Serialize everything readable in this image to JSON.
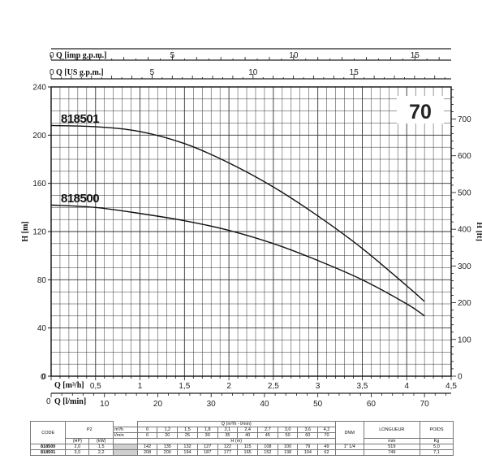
{
  "chart_data": {
    "type": "line",
    "model_badge": "70",
    "axes": {
      "x_main": {
        "label": "Q [m³/h]",
        "ticks": [
          "0",
          "0,5",
          "1",
          "1,5",
          "2",
          "2,5",
          "3",
          "3,5",
          "4",
          "4,5"
        ],
        "range": [
          0,
          4.5
        ]
      },
      "x_lmin": {
        "label": "Q [l/min]",
        "ticks": [
          "0",
          "10",
          "20",
          "30",
          "40",
          "50",
          "60",
          "70"
        ]
      },
      "x_imp": {
        "label": "Q [imp g.p.m.]",
        "ticks": [
          "0",
          "5",
          "10",
          "15"
        ]
      },
      "x_us": {
        "label": "Q [US g.p.m.]",
        "ticks": [
          "0",
          "5",
          "10",
          "15"
        ]
      },
      "y_left": {
        "label": "H [m]",
        "ticks": [
          "0",
          "40",
          "80",
          "120",
          "160",
          "200",
          "240"
        ],
        "range": [
          0,
          240
        ]
      },
      "y_right": {
        "label": "H [ft]",
        "ticks": [
          "0",
          "100",
          "200",
          "300",
          "400",
          "500",
          "600",
          "700"
        ],
        "range": [
          0,
          787.4
        ]
      },
      "grid": true
    },
    "series": [
      {
        "name": "818501",
        "x": [
          0,
          0.5,
          1.0,
          1.5,
          2.0,
          2.5,
          3.0,
          3.5,
          4.0,
          4.2
        ],
        "y": [
          208,
          207,
          203,
          193,
          177,
          157,
          133,
          106,
          75,
          62
        ]
      },
      {
        "name": "818500",
        "x": [
          0,
          0.5,
          1.0,
          1.5,
          2.0,
          2.5,
          3.0,
          3.5,
          4.0,
          4.2
        ],
        "y": [
          142,
          140,
          135,
          129,
          121,
          110,
          96,
          80,
          60,
          50
        ]
      }
    ]
  },
  "table": {
    "code_label": "CODE",
    "p2_label": "P2",
    "q_label": "Q (m³/h - l/min)",
    "hp_unit": "(HP)",
    "kw_unit": "(kW)",
    "m3h_unit": "m³/h",
    "lmin_unit": "l/min",
    "h_unit": "H (m)",
    "dnm_label": "DNM",
    "longueur_label": "LONGUEUR",
    "poids_label": "POIDS",
    "mm_unit": "mm",
    "kg_unit": "Kg",
    "q_m3h": [
      "0",
      "1,2",
      "1,5",
      "1,8",
      "2,1",
      "2,4",
      "2,7",
      "3,0",
      "3,6",
      "4,2"
    ],
    "q_lmin": [
      "0",
      "20",
      "25",
      "30",
      "35",
      "40",
      "45",
      "50",
      "60",
      "70"
    ],
    "rows": [
      {
        "code": "818500",
        "hp": "2,0",
        "kw": "1,5",
        "h": [
          "142",
          "135",
          "132",
          "127",
          "122",
          "115",
          "108",
          "100",
          "79",
          "49"
        ],
        "dnm": "1\" 1/4",
        "longueur": "519",
        "poids": "5,0"
      },
      {
        "code": "818501",
        "hp": "3,0",
        "kw": "2,2",
        "h": [
          "208",
          "200",
          "194",
          "187",
          "177",
          "165",
          "152",
          "138",
          "104",
          "62"
        ],
        "dnm": "",
        "longueur": "749",
        "poids": "7,1"
      }
    ]
  }
}
